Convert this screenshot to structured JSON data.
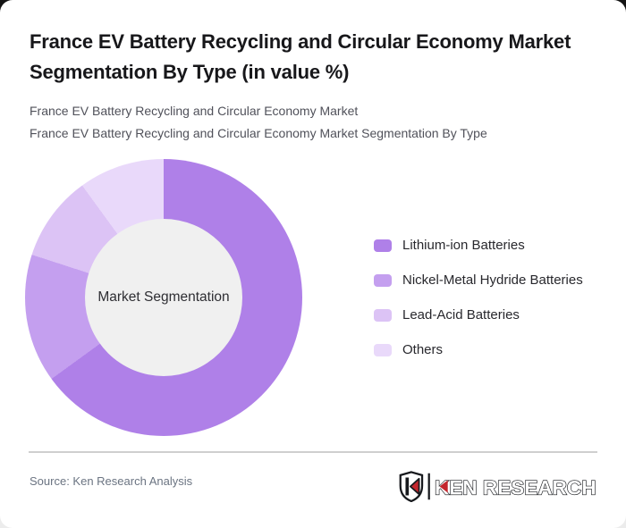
{
  "card": {
    "title": "France EV Battery Recycling and Circular Economy Market Segmentation By Type (in value %)",
    "subtitle_line1": "France EV Battery Recycling and Circular Economy Market",
    "subtitle_line2": "France EV Battery Recycling and Circular Economy Market Segmentation By Type"
  },
  "chart_data": {
    "type": "pie",
    "donut": true,
    "title": "France EV Battery Recycling and Circular Economy Market Segmentation By Type (in value %)",
    "center_label": "Market Segmentation",
    "categories": [
      "Lithium-ion Batteries",
      "Nickel-Metal Hydride Batteries",
      "Lead-Acid Batteries",
      "Others"
    ],
    "values": [
      65,
      15,
      10,
      10
    ],
    "unit": "%",
    "colors": [
      "#AF80E8",
      "#C49FEF",
      "#DCC3F5",
      "#E9D9FA"
    ],
    "hole_color": "#F0F0F0",
    "start_angle_deg": 0,
    "direction": "clockwise",
    "legend_position": "right"
  },
  "footer": {
    "source": "Source: Ken Research Analysis",
    "logo_text": "KEN RESEARCH"
  },
  "colors": {
    "title_text": "#17171A",
    "subtitle_text": "#50515A",
    "source_text": "#6B7482",
    "divider": "#CFCFCF",
    "logo_dark": "#17191D",
    "logo_red": "#C4262D"
  }
}
